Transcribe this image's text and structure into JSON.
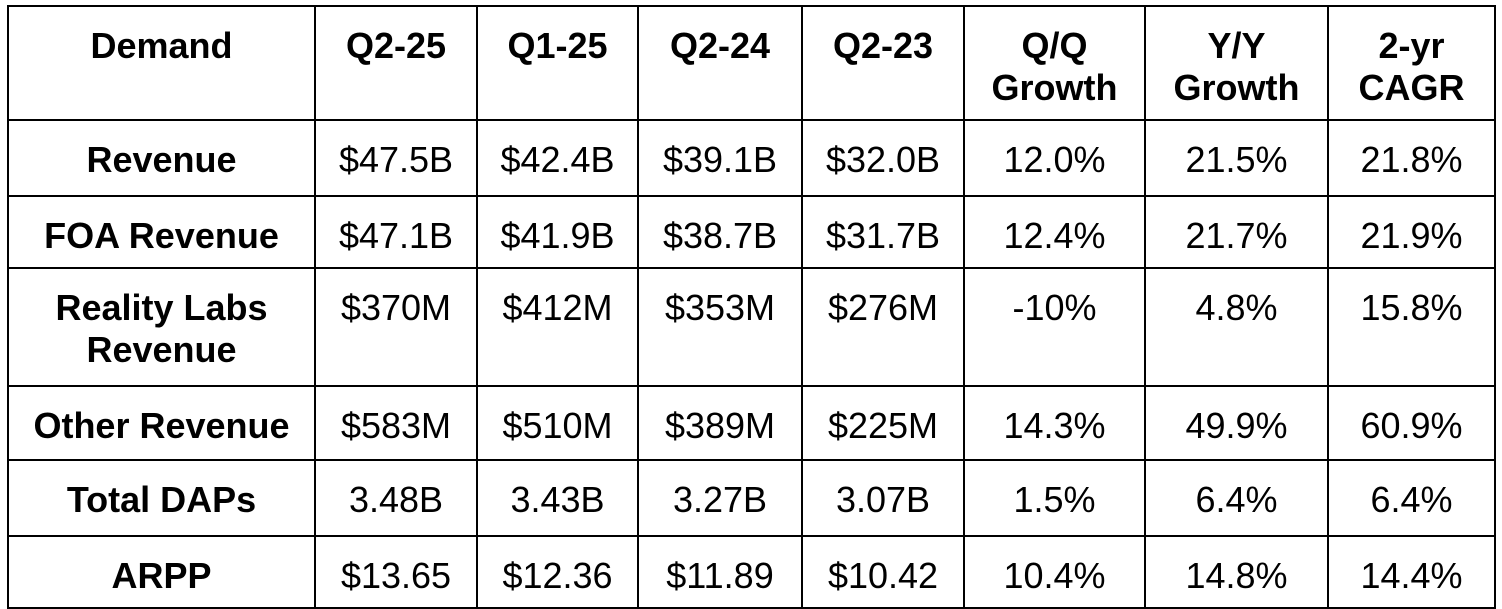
{
  "table": {
    "headers": [
      "Demand",
      "Q2-25",
      "Q1-25",
      "Q2-24",
      "Q2-23",
      "Q/Q Growth",
      "Y/Y Growth",
      "2-yr CAGR"
    ],
    "rows": [
      {
        "label": "Revenue",
        "values": [
          "$47.5B",
          "$42.4B",
          "$39.1B",
          "$32.0B",
          "12.0%",
          "21.5%",
          "21.8%"
        ]
      },
      {
        "label": "FOA Revenue",
        "values": [
          "$47.1B",
          "$41.9B",
          "$38.7B",
          "$31.7B",
          "12.4%",
          "21.7%",
          "21.9%"
        ]
      },
      {
        "label": "Reality Labs Revenue",
        "values": [
          "$370M",
          "$412M",
          "$353M",
          "$276M",
          "-10%",
          "4.8%",
          "15.8%"
        ]
      },
      {
        "label": "Other Revenue",
        "values": [
          "$583M",
          "$510M",
          "$389M",
          "$225M",
          "14.3%",
          "49.9%",
          "60.9%"
        ]
      },
      {
        "label": "Total DAPs",
        "values": [
          "3.48B",
          "3.43B",
          "3.27B",
          "3.07B",
          "1.5%",
          "6.4%",
          "6.4%"
        ]
      },
      {
        "label": "ARPP",
        "values": [
          "$13.65",
          "$12.36",
          "$11.89",
          "$10.42",
          "10.4%",
          "14.8%",
          "14.4%"
        ]
      }
    ]
  }
}
